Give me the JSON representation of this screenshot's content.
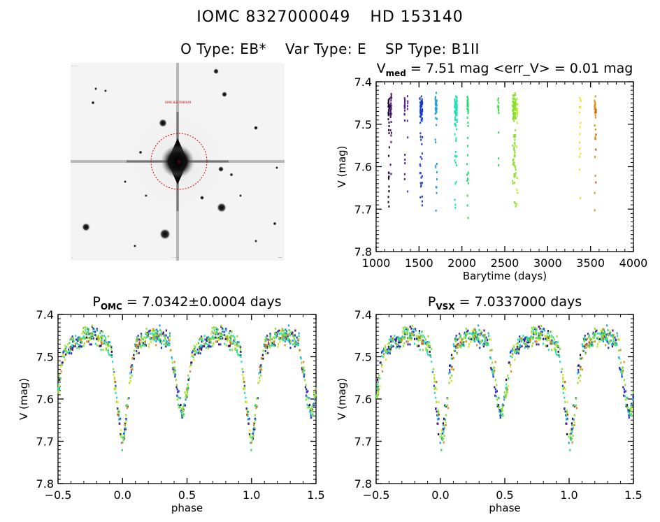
{
  "header": {
    "object_id": "IOMC 8327000049",
    "hd_id": "HD 153140",
    "o_type": "O Type: EB*",
    "var_type": "Var Type: E",
    "sp_type": "SP Type: B1II"
  },
  "image_panel": {
    "description": "V-band sky image centered on target with red dashed aperture circle",
    "aperture_color": "#cc0000"
  },
  "chart_data": [
    {
      "type": "scatter",
      "id": "lightcurve-time",
      "title_main": "V",
      "title_sub": "med",
      "title_rest": " = 7.51 mag <err_V> = 0.01 mag",
      "xlabel": "Barytime (days)",
      "ylabel": "V (mag)",
      "xlim": [
        1000,
        4000
      ],
      "ylim": [
        7.8,
        7.4
      ],
      "xticks": [
        1000,
        1500,
        2000,
        2500,
        3000,
        3500,
        4000
      ],
      "xtick_labels": [
        "1000",
        "1500",
        "2000",
        "2500",
        "3000",
        "3500",
        "4000"
      ],
      "yticks": [
        7.4,
        7.5,
        7.6,
        7.7,
        7.8
      ],
      "ytick_labels": [
        "7.4",
        "7.5",
        "7.6",
        "7.7",
        "7.8"
      ],
      "grid": false,
      "groups": [
        {
          "t0": 1140,
          "span": 15,
          "n": 40,
          "color": "#1a0a2e"
        },
        {
          "t0": 1165,
          "span": 15,
          "n": 30,
          "color": "#4a1070"
        },
        {
          "t0": 1330,
          "span": 6,
          "n": 18,
          "color": "#4a1a8a"
        },
        {
          "t0": 1365,
          "span": 6,
          "n": 8,
          "color": "#5a2aa0"
        },
        {
          "t0": 1510,
          "span": 30,
          "n": 70,
          "color": "#1a3acc"
        },
        {
          "t0": 1690,
          "span": 20,
          "n": 45,
          "color": "#2aa0d8"
        },
        {
          "t0": 1915,
          "span": 30,
          "n": 80,
          "color": "#28e0b8"
        },
        {
          "t0": 2060,
          "span": 15,
          "n": 40,
          "color": "#30d870"
        },
        {
          "t0": 2420,
          "span": 10,
          "n": 14,
          "color": "#40d840"
        },
        {
          "t0": 2590,
          "span": 40,
          "n": 110,
          "color": "#8ae030"
        },
        {
          "t0": 2640,
          "span": 10,
          "n": 20,
          "color": "#c8e830"
        },
        {
          "t0": 3370,
          "span": 15,
          "n": 16,
          "color": "#f0e020"
        },
        {
          "t0": 3545,
          "span": 15,
          "n": 28,
          "color": "#e09020"
        },
        {
          "t0": 3560,
          "span": 6,
          "n": 6,
          "color": "#d05010"
        }
      ],
      "model": {
        "period_days": 7.0342,
        "epoch": 1150.0,
        "max_mag": 7.47,
        "primary_depth": 0.22,
        "primary_phase": 0.0,
        "secondary_depth": 0.16,
        "secondary_phase": 0.46,
        "eclipse_width": 0.09,
        "scatter_mag": 0.018
      }
    },
    {
      "type": "scatter",
      "id": "phased-omc",
      "title_main": "P",
      "title_sub": "OMC",
      "title_rest": " = 7.0342±0.0004 days",
      "xlabel": "phase",
      "ylabel": "V (mag)",
      "xlim": [
        -0.5,
        1.5
      ],
      "ylim": [
        7.8,
        7.4
      ],
      "xticks": [
        -0.5,
        0.0,
        0.5,
        1.0,
        1.5
      ],
      "xtick_labels": [
        "−0.5",
        "0.0",
        "0.5",
        "1.0",
        "1.5"
      ],
      "yticks": [
        7.4,
        7.5,
        7.6,
        7.7,
        7.8
      ],
      "ytick_labels": [
        "7.4",
        "7.5",
        "7.6",
        "7.7",
        "7.8"
      ],
      "period_days": 7.0342,
      "grid": false
    },
    {
      "type": "scatter",
      "id": "phased-vsx",
      "title_main": "P",
      "title_sub": "VSX",
      "title_rest": " = 7.0337000 days",
      "xlabel": "phase",
      "ylabel": "V (mag)",
      "xlim": [
        -0.5,
        1.5
      ],
      "ylim": [
        7.8,
        7.4
      ],
      "xticks": [
        -0.5,
        0.0,
        0.5,
        1.0,
        1.5
      ],
      "xtick_labels": [
        "−0.5",
        "0.0",
        "0.5",
        "1.0",
        "1.5"
      ],
      "yticks": [
        7.4,
        7.5,
        7.6,
        7.7,
        7.8
      ],
      "ytick_labels": [
        "7.4",
        "7.5",
        "7.6",
        "7.7",
        "7.8"
      ],
      "period_days": 7.0337,
      "grid": false
    }
  ]
}
